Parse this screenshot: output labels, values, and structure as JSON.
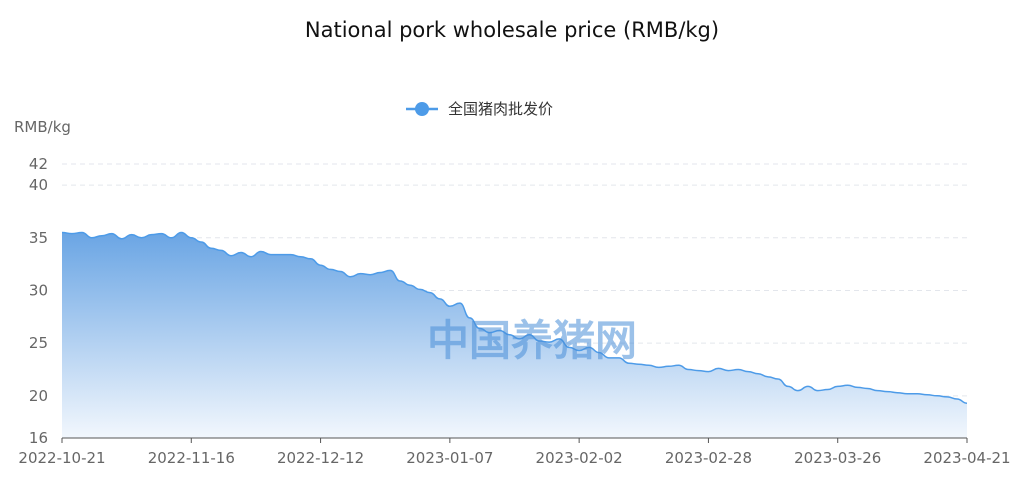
{
  "chart_data": {
    "type": "area",
    "title": "National pork wholesale price (RMB/kg)",
    "ylabel": "RMB/kg",
    "xlabel": "",
    "series_name": "全国猪肉批发价",
    "watermark": "中国养猪网",
    "ylim": [
      16,
      42
    ],
    "yticks": [
      16,
      20,
      25,
      30,
      35,
      40,
      42
    ],
    "xlim": [
      "2022-10-21",
      "2023-04-21"
    ],
    "xticks": [
      "2022-10-21",
      "2022-11-16",
      "2022-12-12",
      "2023-01-07",
      "2023-02-02",
      "2023-02-28",
      "2023-03-26",
      "2023-04-21"
    ],
    "grid": true,
    "legend_position": "top-center",
    "colors": {
      "line": "#4d9be8",
      "area_top": "#6aa5e4",
      "area_bottom": "#f2f7fd"
    },
    "x": [
      "2022-10-21",
      "2022-10-23",
      "2022-10-25",
      "2022-10-27",
      "2022-10-29",
      "2022-10-31",
      "2022-11-02",
      "2022-11-04",
      "2022-11-06",
      "2022-11-08",
      "2022-11-10",
      "2022-11-12",
      "2022-11-14",
      "2022-11-16",
      "2022-11-18",
      "2022-11-20",
      "2022-11-22",
      "2022-11-24",
      "2022-11-26",
      "2022-11-28",
      "2022-11-30",
      "2022-12-02",
      "2022-12-04",
      "2022-12-06",
      "2022-12-08",
      "2022-12-10",
      "2022-12-12",
      "2022-12-14",
      "2022-12-16",
      "2022-12-18",
      "2022-12-20",
      "2022-12-22",
      "2022-12-24",
      "2022-12-26",
      "2022-12-28",
      "2022-12-30",
      "2023-01-01",
      "2023-01-03",
      "2023-01-05",
      "2023-01-07",
      "2023-01-09",
      "2023-01-11",
      "2023-01-13",
      "2023-01-15",
      "2023-01-17",
      "2023-01-19",
      "2023-01-21",
      "2023-01-23",
      "2023-01-25",
      "2023-01-27",
      "2023-01-29",
      "2023-01-31",
      "2023-02-02",
      "2023-02-04",
      "2023-02-06",
      "2023-02-08",
      "2023-02-10",
      "2023-02-12",
      "2023-02-14",
      "2023-02-16",
      "2023-02-18",
      "2023-02-20",
      "2023-02-22",
      "2023-02-24",
      "2023-02-26",
      "2023-02-28",
      "2023-03-02",
      "2023-03-04",
      "2023-03-06",
      "2023-03-08",
      "2023-03-10",
      "2023-03-12",
      "2023-03-14",
      "2023-03-16",
      "2023-03-18",
      "2023-03-20",
      "2023-03-22",
      "2023-03-24",
      "2023-03-26",
      "2023-03-28",
      "2023-03-30",
      "2023-04-01",
      "2023-04-03",
      "2023-04-05",
      "2023-04-07",
      "2023-04-09",
      "2023-04-11",
      "2023-04-13",
      "2023-04-15",
      "2023-04-17",
      "2023-04-19",
      "2023-04-21"
    ],
    "values": [
      35.5,
      35.4,
      35.5,
      35.0,
      35.2,
      35.4,
      34.9,
      35.3,
      35.0,
      35.3,
      35.4,
      35.0,
      35.5,
      35.0,
      34.6,
      34.0,
      33.8,
      33.3,
      33.6,
      33.2,
      33.7,
      33.4,
      33.4,
      33.4,
      33.2,
      33.0,
      32.4,
      32.0,
      31.8,
      31.3,
      31.6,
      31.5,
      31.7,
      31.9,
      30.9,
      30.5,
      30.1,
      29.8,
      29.2,
      28.5,
      28.8,
      27.4,
      26.4,
      26.0,
      26.2,
      25.8,
      25.4,
      25.8,
      25.2,
      25.1,
      25.4,
      24.6,
      24.3,
      24.6,
      24.1,
      23.6,
      23.6,
      23.1,
      23.0,
      22.9,
      22.7,
      22.8,
      22.9,
      22.5,
      22.4,
      22.3,
      22.6,
      22.4,
      22.5,
      22.3,
      22.1,
      21.8,
      21.6,
      20.9,
      20.5,
      20.9,
      20.5,
      20.6,
      20.9,
      21.0,
      20.8,
      20.7,
      20.5,
      20.4,
      20.3,
      20.2,
      20.2,
      20.1,
      20.0,
      19.9,
      19.7,
      19.3
    ]
  }
}
